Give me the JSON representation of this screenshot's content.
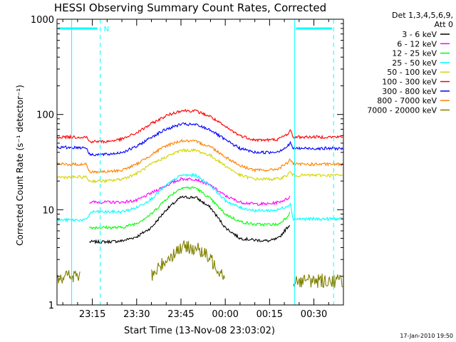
{
  "colors": {
    "background": "#ffffff",
    "axis": "#000000",
    "marker_line": "#00ffff"
  },
  "chart_data": {
    "type": "line",
    "title": "HESSI Observing Summary Count Rates, Corrected",
    "xlabel": "Start Time (13-Nov-08 23:03:02)",
    "ylabel": "Corrected Count Rate (s⁻¹ detector⁻¹)",
    "yscale": "log",
    "ylim": [
      1,
      1000
    ],
    "xlim": [
      "23:03:02",
      "00:40:00"
    ],
    "x_tick_labels": [
      "23:15",
      "23:30",
      "23:45",
      "00:00",
      "00:15",
      "00:30"
    ],
    "x_ticks": [
      "23:15",
      "23:30",
      "23:45",
      "00:00",
      "00:15",
      "00:30"
    ],
    "y_tick_labels": [
      "1",
      "10",
      "100",
      "1000"
    ],
    "y_ticks": [
      1,
      10,
      100,
      1000
    ],
    "legend_header": [
      "Det 1,3,4,5,6,9,",
      "Att 0"
    ],
    "legend_placement": "right",
    "grid": false,
    "footer_timestamp": "17-Jan-2010 19:50",
    "night_marker_label": "N",
    "markers": {
      "solid_lines": [
        "23:08:00",
        "00:23:30"
      ],
      "dashed_lines": [
        "23:17:40",
        "00:36:40"
      ]
    },
    "x_samples": [
      "23:03",
      "23:07",
      "23:08",
      "23:11",
      "23:13",
      "23:14",
      "23:15",
      "23:20",
      "23:25",
      "23:30",
      "23:35",
      "23:40",
      "23:45",
      "23:50",
      "23:55",
      "00:00",
      "00:05",
      "00:10",
      "00:15",
      "00:18",
      "00:21",
      "00:22",
      "00:23",
      "00:25",
      "00:30",
      "00:35",
      "00:40"
    ],
    "series": [
      {
        "name": "3 - 6 keV",
        "color": "#000000",
        "values": [
          null,
          null,
          null,
          null,
          null,
          4.6,
          4.6,
          4.6,
          4.7,
          5.2,
          6.5,
          10,
          13.5,
          13.5,
          10.5,
          6.5,
          5,
          4.8,
          4.7,
          5,
          6.5,
          7,
          null,
          null,
          null,
          null,
          null
        ]
      },
      {
        "name": "6 - 12 keV",
        "color": "#ff00ff",
        "values": [
          null,
          null,
          null,
          null,
          null,
          12,
          12,
          12,
          12,
          12.5,
          15,
          18,
          21,
          21,
          18,
          14,
          12,
          11.5,
          11.5,
          12,
          13,
          14,
          null,
          null,
          null,
          null,
          null
        ]
      },
      {
        "name": "12 - 25 keV",
        "color": "#00ff00",
        "values": [
          null,
          null,
          null,
          null,
          null,
          6.5,
          6.5,
          6.5,
          6.5,
          7.2,
          9,
          13,
          17,
          17,
          13,
          9,
          7.5,
          7,
          7,
          7,
          8.5,
          9.5,
          null,
          null,
          null,
          null,
          null
        ]
      },
      {
        "name": "25 - 50 keV",
        "color": "#00ffff",
        "values": [
          7.8,
          7.8,
          7.8,
          7.8,
          7.8,
          9,
          9.5,
          9.5,
          9.5,
          10.5,
          13,
          18,
          23,
          23,
          18,
          12.5,
          10.5,
          9.8,
          9.8,
          10,
          11,
          11.5,
          8,
          8,
          8,
          8,
          8
        ]
      },
      {
        "name": "50 - 100 keV",
        "color": "#d4d400",
        "values": [
          22,
          22,
          22,
          22,
          22,
          20,
          20,
          20,
          21,
          24,
          30,
          36,
          42,
          42,
          37,
          29,
          23,
          21,
          21,
          21,
          23,
          25,
          23,
          23,
          23,
          23,
          23
        ]
      },
      {
        "name": "100 - 300 keV",
        "color": "#ff0000",
        "values": [
          58,
          58,
          58,
          58,
          58,
          52,
          52,
          52,
          55,
          64,
          80,
          97,
          110,
          109,
          95,
          74,
          60,
          54,
          54,
          55,
          62,
          68,
          58,
          58,
          58,
          58,
          58
        ]
      },
      {
        "name": "300 - 800 keV",
        "color": "#0000ff",
        "values": [
          45,
          45,
          45,
          45,
          45,
          38,
          38,
          38,
          40,
          46,
          58,
          70,
          79,
          78,
          69,
          54,
          44,
          40,
          40,
          41,
          46,
          50,
          44,
          44,
          44,
          44,
          44
        ]
      },
      {
        "name": "800 - 7000 keV",
        "color": "#ff8000",
        "values": [
          30,
          30,
          30,
          30,
          30,
          25,
          25,
          25,
          26,
          30,
          38,
          47,
          53,
          52,
          46,
          36,
          29,
          26,
          26,
          27,
          31,
          34,
          30,
          30,
          30,
          30,
          30
        ]
      },
      {
        "name": "7000 - 20000 keV",
        "color": "#808000",
        "values": [
          2,
          2,
          2,
          2,
          null,
          null,
          null,
          null,
          null,
          null,
          2,
          3,
          4,
          4,
          3,
          2,
          null,
          null,
          null,
          null,
          null,
          null,
          1.8,
          1.8,
          1.8,
          1.8,
          1.8
        ]
      }
    ]
  }
}
